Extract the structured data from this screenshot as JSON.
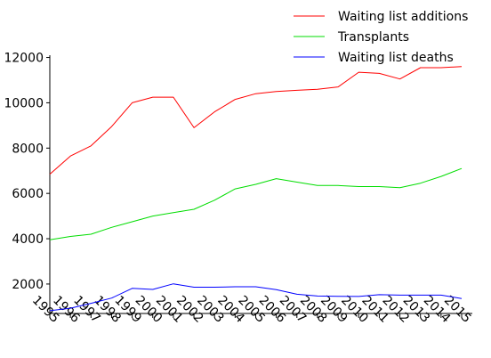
{
  "chart_data": {
    "type": "line",
    "title": "",
    "xlabel": "",
    "ylabel": "",
    "x": [
      "1995",
      "1996",
      "1997",
      "1998",
      "1999",
      "2000",
      "2001",
      "2002",
      "2003",
      "2004",
      "2005",
      "2006",
      "2007",
      "2008",
      "2009",
      "2010",
      "2011",
      "2012",
      "2013",
      "2014",
      "2015"
    ],
    "ylim": [
      700,
      12100
    ],
    "yticks": [
      2000,
      4000,
      6000,
      8000,
      10000,
      12000
    ],
    "ytick_labels": [
      "2000",
      "4000",
      "6000",
      "8000",
      "10000",
      "12000"
    ],
    "legend_position": "top-right",
    "grid": false,
    "series": [
      {
        "name": "Waiting list additions",
        "color": "#ff0000",
        "values": [
          6850,
          7650,
          8100,
          8950,
          10000,
          10250,
          10250,
          8900,
          9600,
          10150,
          10400,
          10500,
          10550,
          10600,
          10700,
          11350,
          11300,
          11050,
          11550,
          11550,
          11600
        ]
      },
      {
        "name": "Transplants",
        "color": "#00dd00",
        "values": [
          3950,
          4100,
          4200,
          4500,
          4750,
          5000,
          5150,
          5300,
          5700,
          6200,
          6400,
          6650,
          6500,
          6350,
          6350,
          6300,
          6300,
          6250,
          6450,
          6750,
          7100
        ]
      },
      {
        "name": "Waiting list deaths",
        "color": "#0000ff",
        "values": [
          820,
          930,
          1150,
          1380,
          1810,
          1760,
          2010,
          1860,
          1860,
          1880,
          1880,
          1750,
          1550,
          1470,
          1460,
          1450,
          1530,
          1510,
          1510,
          1510,
          1360
        ]
      }
    ]
  }
}
